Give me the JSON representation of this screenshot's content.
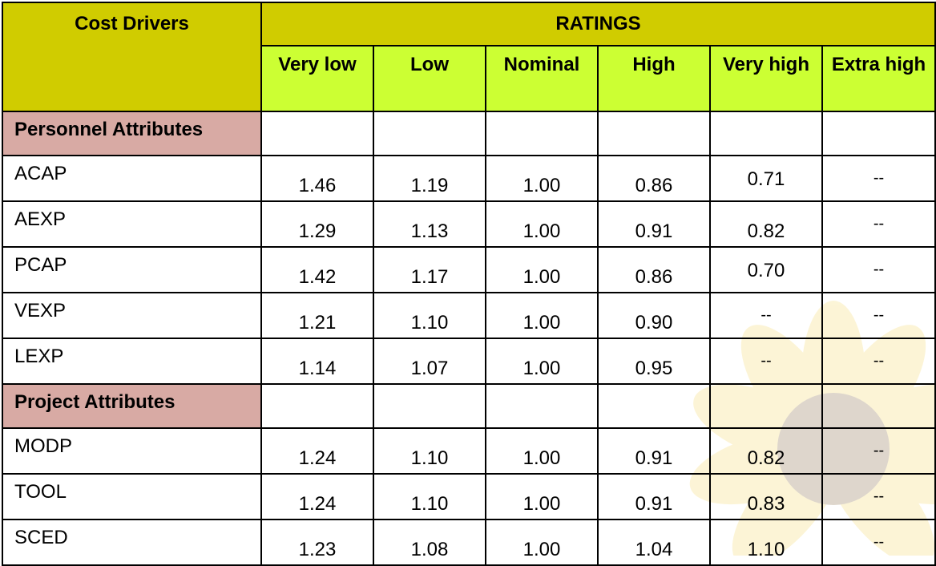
{
  "header": {
    "cost_drivers": "Cost Drivers",
    "ratings": "RATINGS",
    "rating_levels": [
      "Very low",
      "Low",
      "Nominal",
      "High",
      "Very high",
      "Extra high"
    ]
  },
  "sections": [
    {
      "title": "Personnel Attributes",
      "rows": [
        {
          "driver": "ACAP",
          "values": [
            "1.46",
            "1.19",
            "1.00",
            "0.86",
            "0.71",
            "--"
          ]
        },
        {
          "driver": "AEXP",
          "values": [
            "1.29",
            "1.13",
            "1.00",
            "0.91",
            "0.82",
            "--"
          ]
        },
        {
          "driver": "PCAP",
          "values": [
            "1.42",
            "1.17",
            "1.00",
            "0.86",
            "0.70",
            "--"
          ]
        },
        {
          "driver": "VEXP",
          "values": [
            "1.21",
            "1.10",
            "1.00",
            "0.90",
            "--",
            "--"
          ]
        },
        {
          "driver": "LEXP",
          "values": [
            "1.14",
            "1.07",
            "1.00",
            "0.95",
            "--",
            "--"
          ]
        }
      ]
    },
    {
      "title": "Project Attributes",
      "rows": [
        {
          "driver": "MODP",
          "values": [
            "1.24",
            "1.10",
            "1.00",
            "0.91",
            "0.82",
            "--"
          ]
        },
        {
          "driver": "TOOL",
          "values": [
            "1.24",
            "1.10",
            "1.00",
            "0.91",
            "0.83",
            "--"
          ]
        },
        {
          "driver": "SCED",
          "values": [
            "1.23",
            "1.08",
            "1.00",
            "1.04",
            "1.10",
            "--"
          ]
        }
      ]
    }
  ],
  "colors": {
    "header_dark": "#d0cc00",
    "header_light": "#ccff33",
    "section_bg": "#d8aaa4"
  },
  "watermark_icon": "sunflower-watermark"
}
